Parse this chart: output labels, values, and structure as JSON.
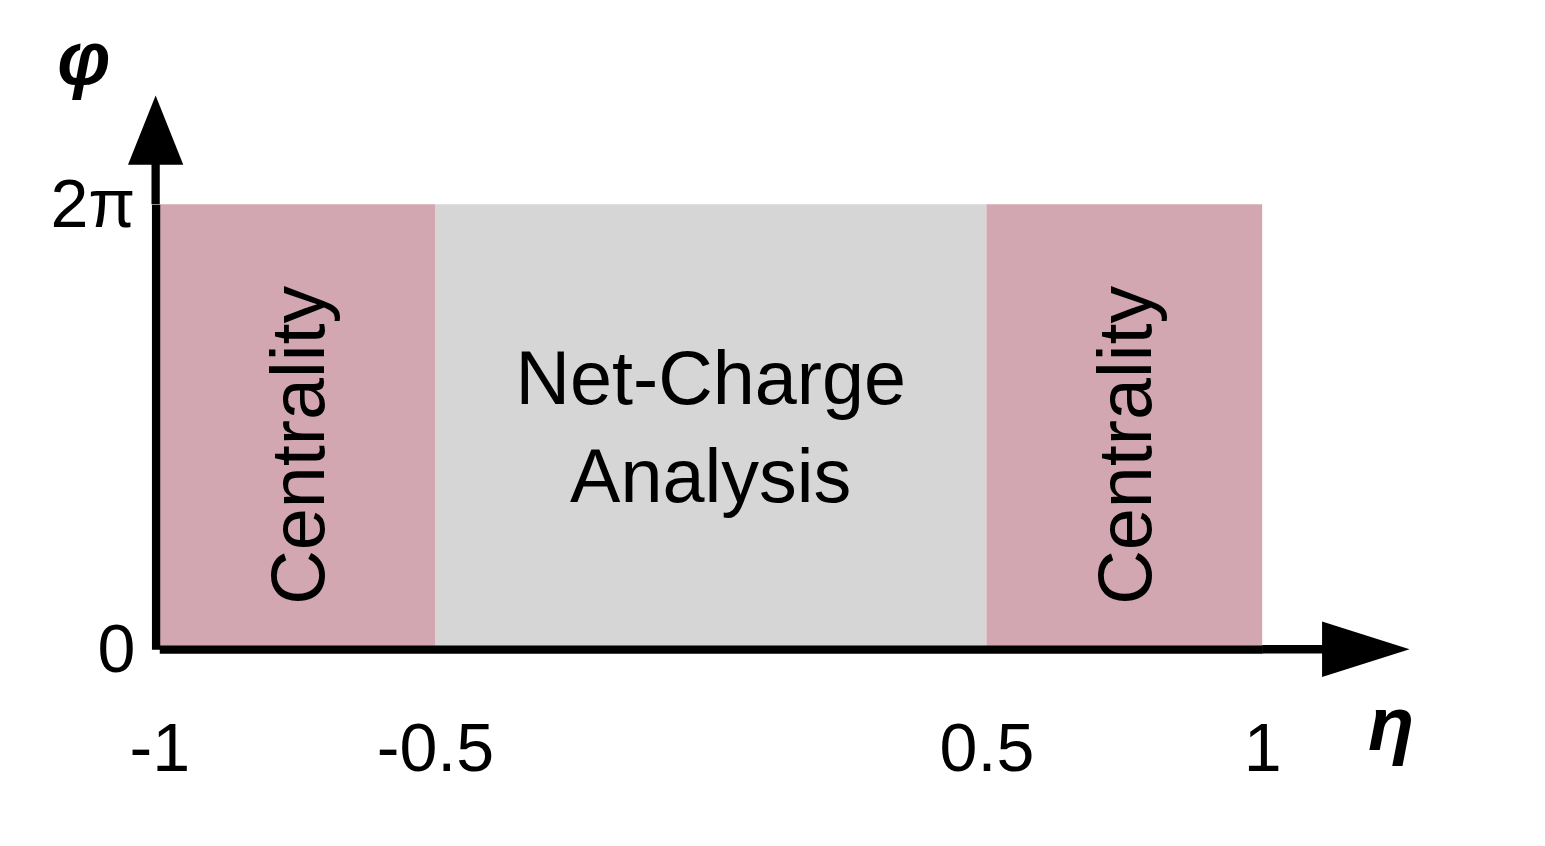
{
  "chart_data": {
    "type": "histogram",
    "xlabel": "η",
    "ylabel": "φ",
    "xlim": [
      -1,
      1
    ],
    "xticks": [
      -1,
      -0.5,
      0.5,
      1
    ],
    "ylim": [
      0,
      6.283
    ],
    "yticks": [
      0,
      {
        "value": 6.283,
        "label": "2π"
      }
    ],
    "bins": [
      -1,
      -0.5,
      0.5,
      1
    ],
    "values": [
      6.283,
      6.283,
      6.283
    ],
    "colors": [
      "#d2a7b2",
      "#d6d6d6",
      "#d2a7b2"
    ],
    "annotations": [
      "Centrality",
      "Net-Charge Analysis",
      "Centrality"
    ]
  }
}
